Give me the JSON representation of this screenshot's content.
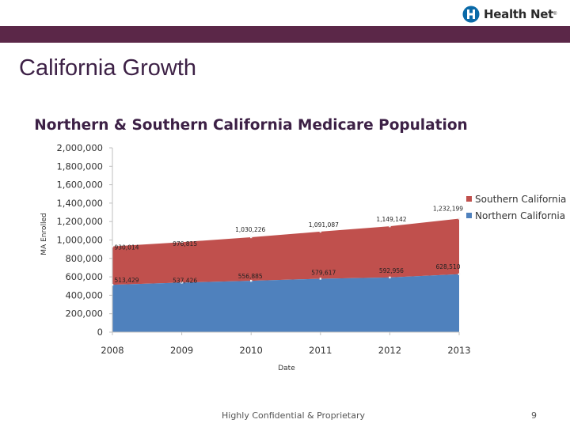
{
  "header": {
    "logo_text": "Health Net",
    "logo_tm": "®",
    "slide_title": "California Growth"
  },
  "footer": {
    "confidential": "Highly Confidential & Proprietary",
    "page_number": "9"
  },
  "colors": {
    "band": "#5b2748",
    "southern": "#c0504d",
    "northern": "#4f81bd",
    "logo_accent": "#0b6aa8"
  },
  "chart_data": {
    "type": "area",
    "stacked": true,
    "title": "Northern & Southern California Medicare Population",
    "xlabel": "Date",
    "ylabel": "MA Enrolled",
    "categories": [
      "2008",
      "2009",
      "2010",
      "2011",
      "2012",
      "2013"
    ],
    "ylim": [
      0,
      2000000
    ],
    "y_ticks": [
      "0",
      "200,000",
      "400,000",
      "600,000",
      "800,000",
      "1,000,000",
      "1,200,000",
      "1,400,000",
      "1,600,000",
      "1,800,000",
      "2,000,000"
    ],
    "series": [
      {
        "name": "Northern California",
        "values": [
          513429,
          537426,
          556885,
          579617,
          592956,
          628510
        ],
        "labels": [
          "513,429",
          "537,426",
          "556,885",
          "579,617",
          "592,956",
          "628,510"
        ]
      },
      {
        "name": "Southern California",
        "values": [
          930014,
          976815,
          1030226,
          1091087,
          1149142,
          1232199
        ],
        "labels": [
          "930,014",
          "976,815",
          "1,030,226",
          "1,091,087",
          "1,149,142",
          "1,232,199"
        ]
      }
    ],
    "legend": [
      "Southern California",
      "Northern California"
    ],
    "legend_position": "right",
    "grid": false
  }
}
